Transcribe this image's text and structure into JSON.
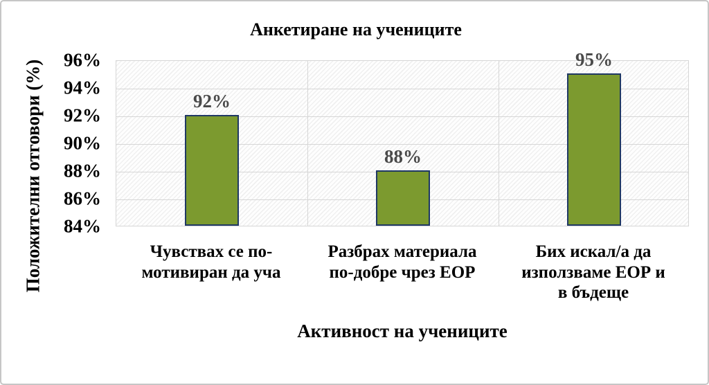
{
  "figure": {
    "background": "#ffffff",
    "border_color": "#c6c6c6"
  },
  "chart_data": {
    "type": "bar",
    "title": "Анкетиране на учениците",
    "xlabel": "Активност на учениците",
    "ylabel": "Положителни отговори (%)",
    "categories": [
      {
        "label": "Чувствах се по-мотивиран да уча",
        "lines": [
          "Чувствах се по-",
          "мотивиран да уча"
        ]
      },
      {
        "label": "Разбрах материала по-добре чрез ЕОР",
        "lines": [
          "Разбрах материала",
          "по-добре чрез ЕОР"
        ]
      },
      {
        "label": "Бих искал/а да използваме ЕОР и в бъдеще",
        "lines": [
          "Бих искал/а да",
          "използваме ЕОР и",
          "в бъдеще"
        ]
      }
    ],
    "values": [
      92,
      88,
      95
    ],
    "data_labels": [
      "92%",
      "88%",
      "95%"
    ],
    "ylim": [
      84,
      96
    ],
    "ytick_step": 2,
    "ytick_labels": [
      "84%",
      "86%",
      "88%",
      "90%",
      "92%",
      "94%",
      "96%"
    ],
    "grid": "horizontal gridlines every 2% plus vertical category dividers",
    "legend": "none",
    "plot_background": "light diagonal hatch pattern",
    "colors": {
      "bar_fill": "#7c9a2f",
      "bar_border": "#1f3864",
      "gridline": "#d6d6d6",
      "data_label": "#4a4a4a",
      "text": "#000000"
    }
  }
}
